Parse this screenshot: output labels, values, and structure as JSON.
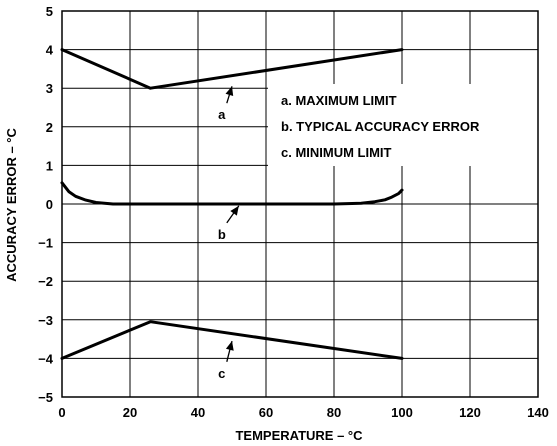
{
  "chart_data": {
    "type": "line",
    "title": "",
    "xlabel": "TEMPERATURE – °C",
    "ylabel": "ACCURACY ERROR – °C",
    "xlim": [
      0,
      140
    ],
    "ylim": [
      -5,
      5
    ],
    "x_ticks": [
      "0",
      "20",
      "40",
      "60",
      "80",
      "100",
      "120",
      "140"
    ],
    "y_ticks": [
      "5",
      "4",
      "3",
      "2",
      "1",
      "0",
      "−1",
      "−2",
      "−3",
      "−4",
      "−5"
    ],
    "grid": true,
    "legend_position": "top-right",
    "legend": [
      "a.  MAXIMUM LIMIT",
      "b.  TYPICAL ACCURACY ERROR",
      "c.  MINIMUM LIMIT"
    ],
    "series": [
      {
        "x": [
          0,
          26,
          100
        ],
        "y": [
          4,
          3,
          4
        ]
      },
      {
        "x": [
          0,
          2,
          4,
          7,
          10,
          15,
          25,
          40,
          60,
          80,
          88,
          92,
          95,
          97,
          99,
          100
        ],
        "y": [
          0.55,
          0.32,
          0.2,
          0.1,
          0.04,
          0,
          0,
          0,
          0,
          0,
          0.02,
          0.06,
          0.11,
          0.18,
          0.27,
          0.36
        ]
      },
      {
        "x": [
          0,
          26,
          100
        ],
        "y": [
          -4,
          -3.05,
          -4
        ]
      }
    ],
    "annotations": [
      {
        "text": "a",
        "label_x": 47,
        "label_y": 2.3,
        "arrow_x": 50,
        "arrow_y": 3.05
      },
      {
        "text": "b",
        "label_x": 47,
        "label_y": -0.8,
        "arrow_x": 52,
        "arrow_y": -0.05
      },
      {
        "text": "c",
        "label_x": 47,
        "label_y": -4.4,
        "arrow_x": 50,
        "arrow_y": -3.55
      }
    ]
  }
}
